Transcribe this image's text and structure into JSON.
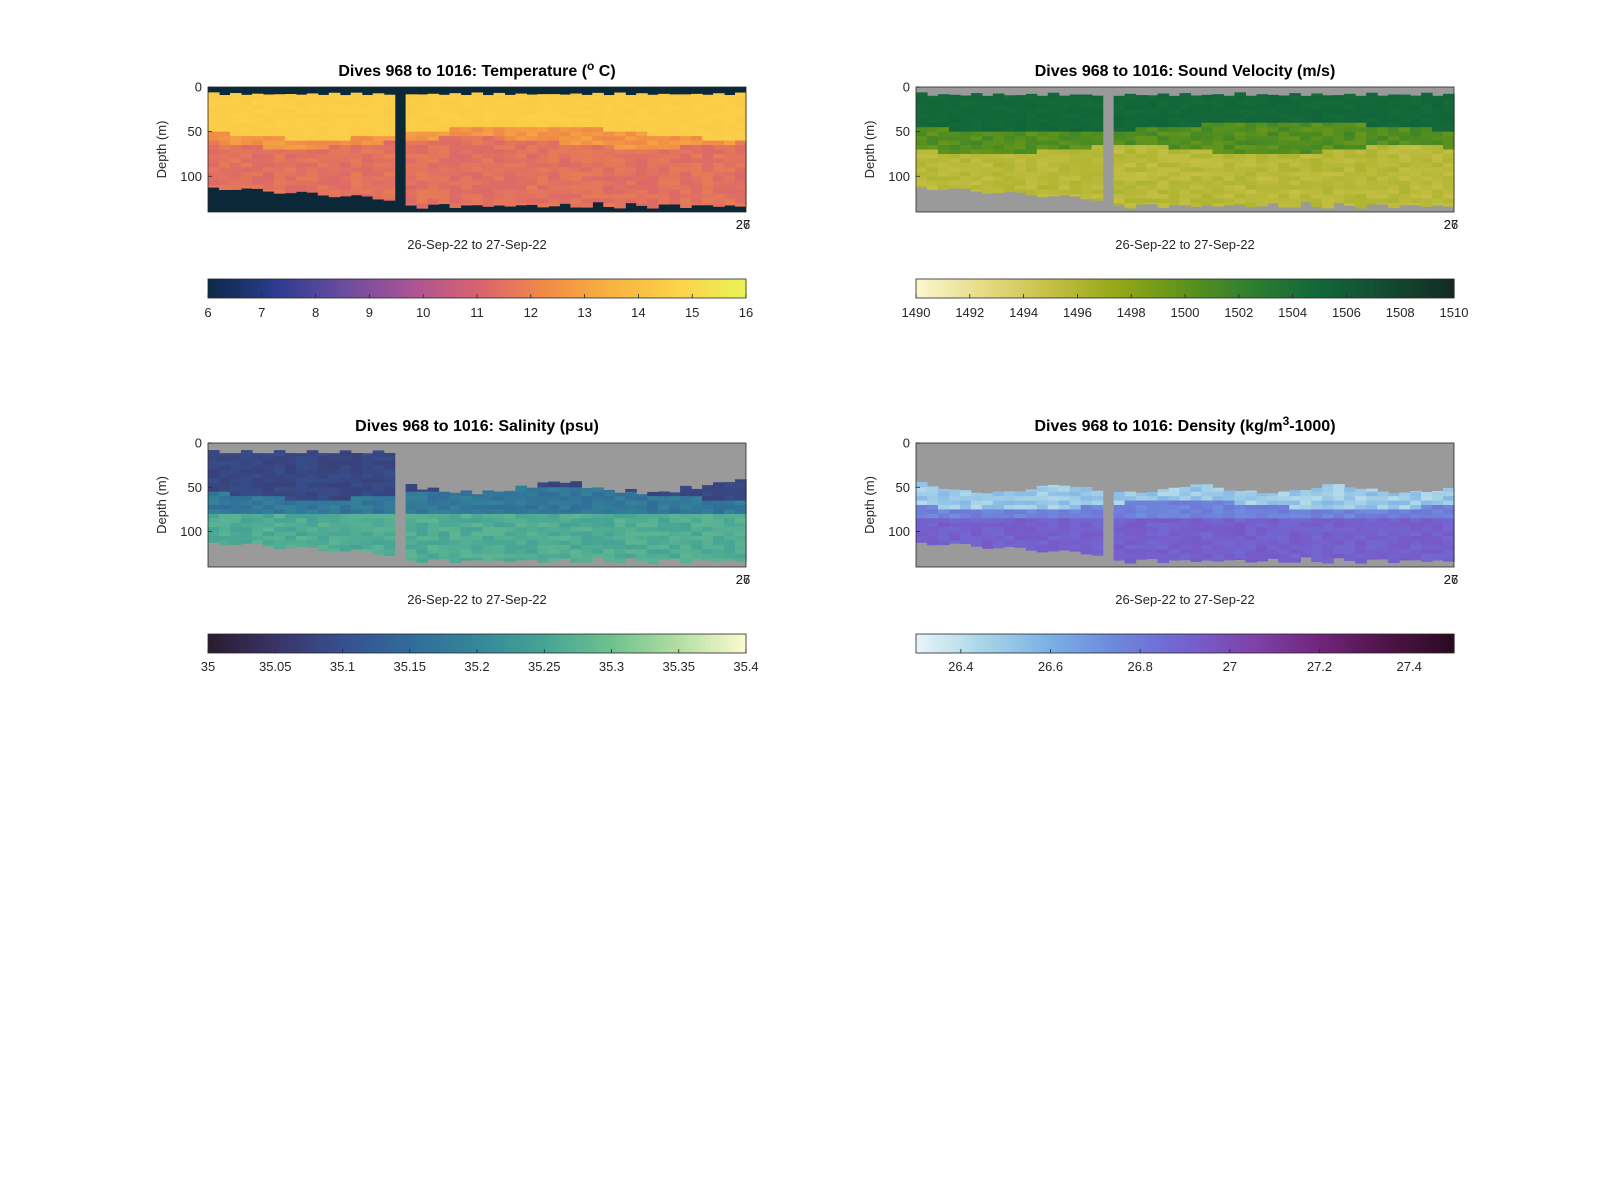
{
  "figure": {
    "panels": [
      {
        "id": "temperature",
        "title_main": "Dives 968 to 1016: Temperature (",
        "title_sup": "o",
        "title_end": " C)",
        "ylabel": "Depth (m)",
        "xlabel": "26-Sep-22 to 27-Sep-22",
        "yticks": [
          "0",
          "50",
          "100"
        ],
        "xtick_labels": [
          "26",
          "27"
        ],
        "colorbar_ticks": [
          "6",
          "7",
          "8",
          "9",
          "10",
          "11",
          "12",
          "13",
          "14",
          "15",
          "16"
        ],
        "colormap": [
          "#0c2a47",
          "#2c3b8f",
          "#6a4ca0",
          "#a95396",
          "#d8626f",
          "#f08a47",
          "#f8b340",
          "#fcd34a",
          "#e9f356"
        ],
        "background": "#0b2838"
      },
      {
        "id": "sound_velocity",
        "title_main": "Dives 968 to 1016: Sound Velocity (m/s)",
        "title_sup": "",
        "title_end": "",
        "ylabel": "Depth (m)",
        "xlabel": "26-Sep-22 to 27-Sep-22",
        "yticks": [
          "0",
          "50",
          "100"
        ],
        "xtick_labels": [
          "26",
          "27"
        ],
        "colorbar_ticks": [
          "1490",
          "1492",
          "1494",
          "1496",
          "1498",
          "1500",
          "1502",
          "1504",
          "1506",
          "1508",
          "1510"
        ],
        "colormap": [
          "#fbf7cf",
          "#e6dc86",
          "#c5bf45",
          "#93a816",
          "#5e931c",
          "#2d7e2f",
          "#12673a",
          "#134b31",
          "#152a22"
        ],
        "background": "#9a9a9a"
      },
      {
        "id": "salinity",
        "title_main": "Dives 968 to 1016: Salinity (psu)",
        "title_sup": "",
        "title_end": "",
        "ylabel": "Depth (m)",
        "xlabel": "26-Sep-22 to 27-Sep-22",
        "yticks": [
          "0",
          "50",
          "100"
        ],
        "xtick_labels": [
          "26",
          "27"
        ],
        "colorbar_ticks": [
          "35",
          "35.05",
          "35.1",
          "35.15",
          "35.2",
          "35.25",
          "35.3",
          "35.35",
          "35.4"
        ],
        "colormap": [
          "#2a1b2e",
          "#393468",
          "#37508f",
          "#316b9a",
          "#348799",
          "#45a495",
          "#6fc18f",
          "#b3dea3",
          "#fdfbd0"
        ],
        "background": "#9a9a9a"
      },
      {
        "id": "density",
        "title_main": "Dives 968 to 1016: Density (kg/m",
        "title_sup": "3",
        "title_end": "-1000)",
        "ylabel": "Depth (m)",
        "xlabel": "26-Sep-22 to 27-Sep-22",
        "yticks": [
          "0",
          "50",
          "100"
        ],
        "xtick_labels": [
          "26",
          "27"
        ],
        "colorbar_ticks": [
          "26.4",
          "26.6",
          "26.8",
          "27",
          "27.2",
          "27.4"
        ],
        "colormap": [
          "#e8f5f7",
          "#a9d4e8",
          "#7ab0e4",
          "#6d86dc",
          "#7462d0",
          "#7e43aa",
          "#71257b",
          "#4e1347",
          "#2b0a21"
        ],
        "background": "#9a9a9a"
      }
    ]
  },
  "chart_data": [
    {
      "type": "heatmap",
      "title": "Dives 968 to 1016: Temperature (o C)",
      "xlabel": "26-Sep-22 to 27-Sep-22",
      "ylabel": "Depth (m)",
      "ylim": [
        0,
        140
      ],
      "y_reversed": true,
      "variable": "Temperature (°C)",
      "colorbar_range": [
        6,
        16
      ],
      "profiles": {
        "surface_value": 14.6,
        "mid_value": 12.3,
        "deep_value": 11.4,
        "thermocline_depth_m": [
          50,
          58,
          66
        ],
        "max_depth_m": [
          110,
          125,
          135
        ]
      }
    },
    {
      "type": "heatmap",
      "title": "Dives 968 to 1016: Sound Velocity (m/s)",
      "xlabel": "26-Sep-22 to 27-Sep-22",
      "ylabel": "Depth (m)",
      "ylim": [
        0,
        140
      ],
      "y_reversed": true,
      "variable": "Sound Velocity (m/s)",
      "colorbar_range": [
        1490,
        1510
      ],
      "profiles": {
        "surface_value": 1504,
        "mid_value": 1499,
        "deep_value": 1495,
        "max_depth_m": [
          110,
          125,
          135
        ]
      }
    },
    {
      "type": "heatmap",
      "title": "Dives 968 to 1016: Salinity (psu)",
      "xlabel": "26-Sep-22 to 27-Sep-22",
      "ylabel": "Depth (m)",
      "ylim": [
        0,
        140
      ],
      "y_reversed": true,
      "variable": "Salinity (psu)",
      "colorbar_range": [
        35,
        35.4
      ],
      "profiles": {
        "surface_value": 35.07,
        "mid_value": 35.2,
        "deep_value": 35.26,
        "max_depth_m": [
          110,
          125,
          135
        ]
      }
    },
    {
      "type": "heatmap",
      "title": "Dives 968 to 1016: Density (kg/m3-1000)",
      "xlabel": "26-Sep-22 to 27-Sep-22",
      "ylabel": "Depth (m)",
      "ylim": [
        0,
        140
      ],
      "y_reversed": true,
      "variable": "Density (kg/m3-1000)",
      "colorbar_range": [
        26.3,
        27.5
      ],
      "profiles": {
        "surface_value": 26.5,
        "mid_value": 26.8,
        "deep_value": 27.0,
        "max_depth_m": [
          110,
          125,
          135
        ]
      }
    }
  ]
}
